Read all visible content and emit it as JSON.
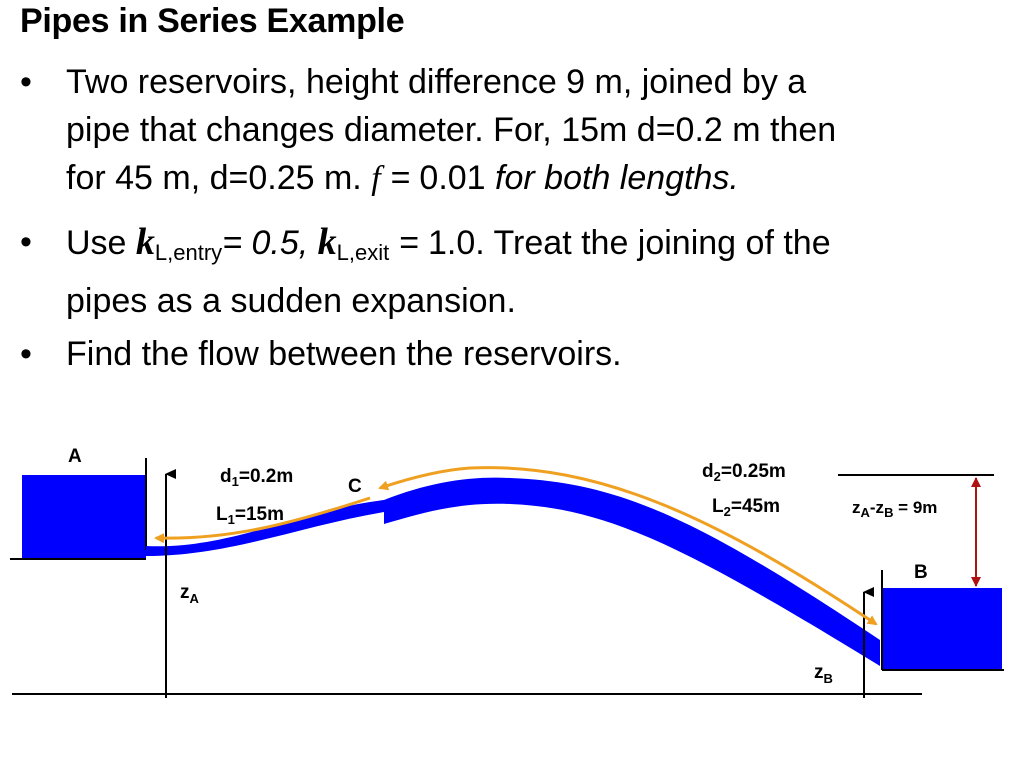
{
  "title": "Pipes in Series Example",
  "bullets": {
    "b1": {
      "marker": "•",
      "line1": "Two reservoirs, height difference 9 m, joined by a",
      "line2": "pipe that changes diameter. For, 15m d=0.2 m then",
      "line3_start": "for 45 m, d=0.25 m.",
      "f_symbol": "f",
      "f_eq": " = ",
      "f_value": "0.01",
      "line3_end": " for both lengths."
    },
    "b2": {
      "marker": "•",
      "use": "Use ",
      "k_symbol": "k",
      "k_entry_sub": "L,entry",
      "k_entry_value": "= 0.5, ",
      "k_exit_sub": "L,exit",
      "k_exit_eq": " = ",
      "k_exit_value": "1.0",
      "rest_line1": ". Treat the joining of the",
      "line2": "pipes as a sudden expansion."
    },
    "b3": {
      "marker": "•",
      "text": "Find the flow between the reservoirs."
    }
  },
  "diagram": {
    "reservoir_a": "A",
    "reservoir_b": "B",
    "junction": "C",
    "d1_main": "d",
    "d1_sub": "1",
    "d1_val": "=0.2m",
    "l1_main": "L",
    "l1_sub": "1",
    "l1_val": "=15m",
    "d2_main": "d",
    "d2_sub": "2",
    "d2_val": "=0.25m",
    "l2_main": "L",
    "l2_sub": "2",
    "l2_val": "=45m",
    "zdiff_a": "z",
    "zdiff_a_sub": "A",
    "zdiff_dash": "-z",
    "zdiff_b_sub": "B",
    "zdiff_val": " = 9m",
    "za_main": "z",
    "za_sub": "A",
    "zb_main": "z",
    "zb_sub": "B",
    "colors": {
      "water": "#0000ff",
      "arrow": "#f0a020",
      "dim_arrow": "#b01010"
    }
  }
}
